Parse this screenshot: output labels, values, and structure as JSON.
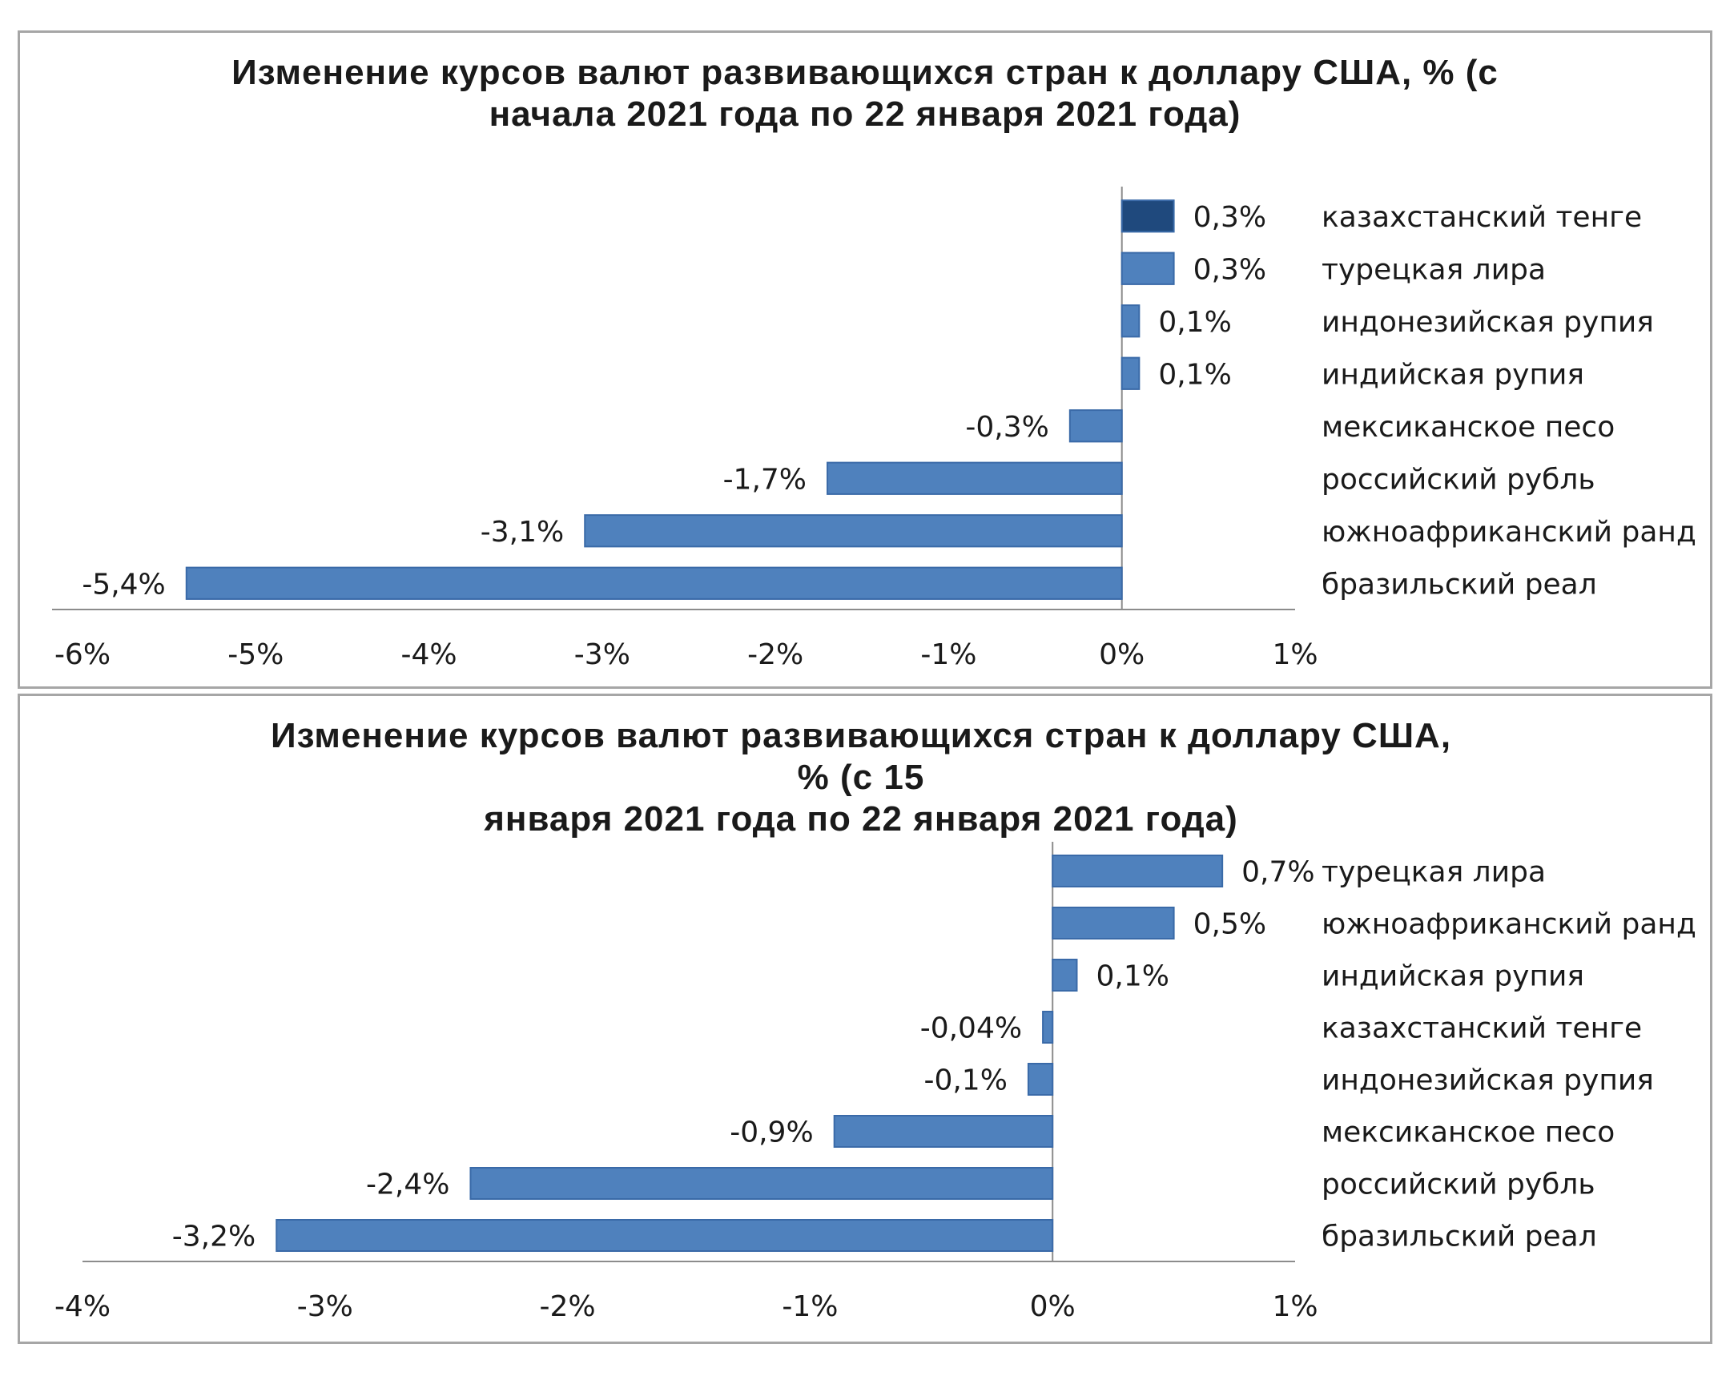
{
  "colors": {
    "bar": "#4f81bd",
    "bar_highlight": "#1f497d",
    "bar_border": "#3a6aa8",
    "axis": "#8c8c8c"
  },
  "chart_data": [
    {
      "type": "bar",
      "orientation": "horizontal",
      "title": "Изменение курсов валют развивающихся стран к доллару США, % (с начала 2021 года по 22 января 2021 года)",
      "title_lines": [
        "Изменение курсов валют развивающихся стран к доллару США, % (с",
        "начала 2021 года по 22 января 2021 года)"
      ],
      "categories": [
        "казахстанский тенге",
        "турецкая лира",
        "индонезийская рупия",
        "индийская рупия",
        "мексиканское песо",
        "российский рубль",
        "южноафриканский ранд",
        "бразильский реал"
      ],
      "values": [
        0.3,
        0.3,
        0.1,
        0.1,
        -0.3,
        -1.7,
        -3.1,
        -5.4
      ],
      "data_labels": [
        "0,3%",
        "0,3%",
        "0,1%",
        "0,1%",
        "-0,3%",
        "-1,7%",
        "-3,1%",
        "-5,4%"
      ],
      "highlight": [
        "казахстанский тенге"
      ],
      "xlim": [
        -6,
        1
      ],
      "xticks": [
        -6,
        -5,
        -4,
        -3,
        -2,
        -1,
        0,
        1
      ],
      "xtick_labels": [
        "-6%",
        "-5%",
        "-4%",
        "-3%",
        "-2%",
        "-1%",
        "0%",
        "1%"
      ],
      "xlabel": "",
      "ylabel": "",
      "grid": false,
      "legend": false
    },
    {
      "type": "bar",
      "orientation": "horizontal",
      "title": "Изменение курсов валют развивающихся стран к доллару США, % (с 15 января 2021 года по 22 января 2021 года)",
      "title_lines": [
        "Изменение курсов валют развивающихся стран к доллару США, % (с 15",
        "января 2021 года по 22 января 2021 года)"
      ],
      "categories": [
        "турецкая лира",
        "южноафриканский ранд",
        "индийская рупия",
        "казахстанский тенге",
        "индонезийская рупия",
        "мексиканское песо",
        "российский рубль",
        "бразильский реал"
      ],
      "values": [
        0.7,
        0.5,
        0.1,
        -0.04,
        -0.1,
        -0.9,
        -2.4,
        -3.2
      ],
      "data_labels": [
        "0,7%",
        "0,5%",
        "0,1%",
        "-0,04%",
        "-0,1%",
        "-0,9%",
        "-2,4%",
        "-3,2%"
      ],
      "highlight": [],
      "xlim": [
        -4,
        1
      ],
      "xticks": [
        -4,
        -3,
        -2,
        -1,
        0,
        1
      ],
      "xtick_labels": [
        "-4%",
        "-3%",
        "-2%",
        "-1%",
        "0%",
        "1%"
      ],
      "xlabel": "",
      "ylabel": "",
      "grid": false,
      "legend": false
    }
  ]
}
